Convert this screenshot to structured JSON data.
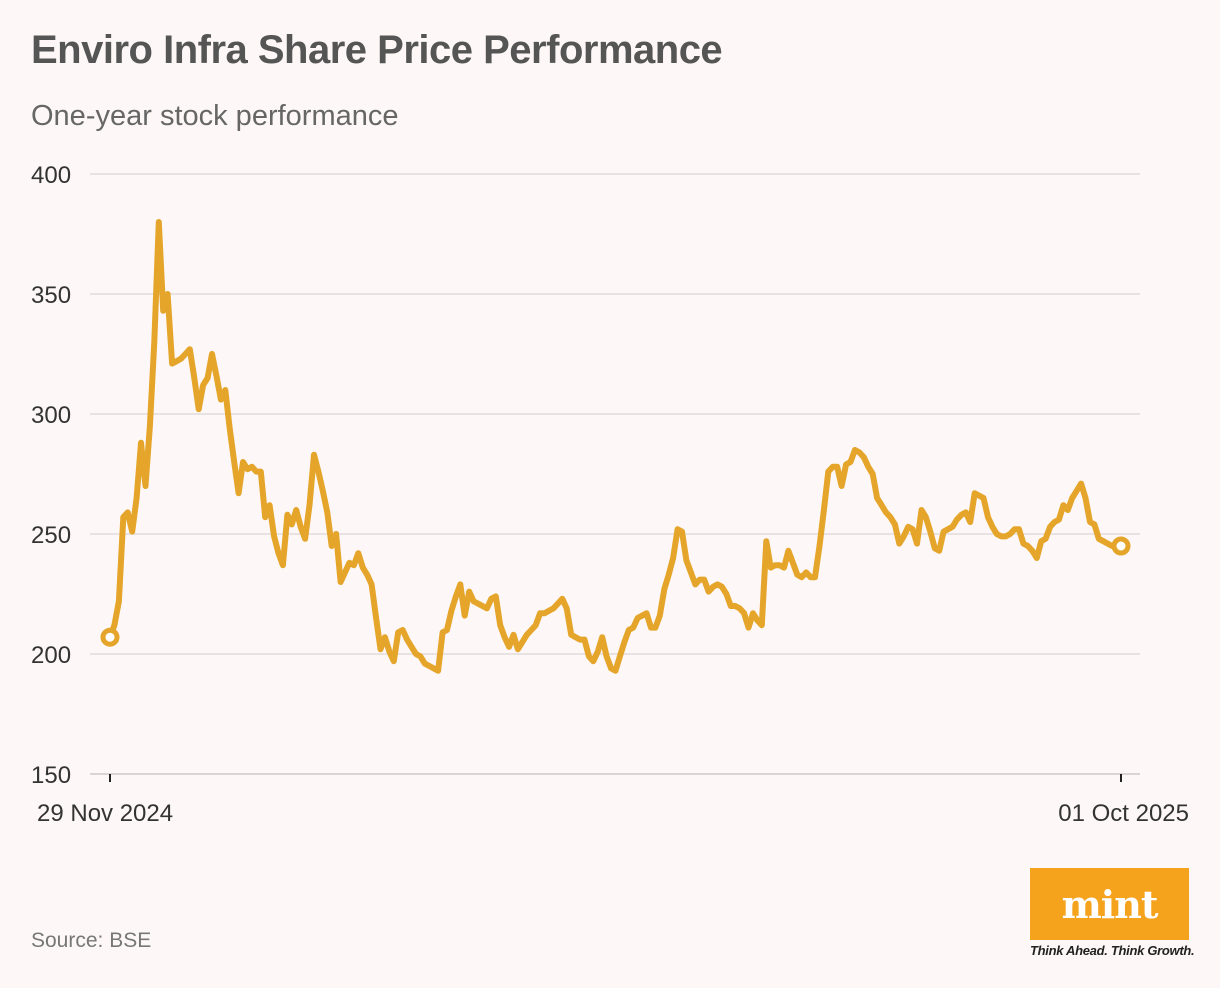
{
  "colors": {
    "background": "#FDF8F7",
    "line": "#E5A52B",
    "grid": "#E2DCDB",
    "logo": "#F5A21D"
  },
  "source": "Source: BSE",
  "logo": {
    "text": "mint",
    "tagline": "Think Ahead. Think Growth.",
    "icon": "mint-logo"
  },
  "chart_data": {
    "type": "line",
    "title": "Enviro Infra Share Price Performance",
    "subtitle": "One-year stock performance",
    "xlabel": "",
    "ylabel": "",
    "x_tick_labels": [
      "29 Nov 2024",
      "01 Oct 2025"
    ],
    "y_ticks": [
      150,
      200,
      250,
      300,
      350,
      400
    ],
    "ylim": [
      150,
      400
    ],
    "grid": true,
    "series": [
      {
        "values": [
          207,
          212,
          222,
          257,
          259,
          251,
          265,
          288,
          270,
          295,
          330,
          380,
          343,
          350,
          321,
          322,
          323,
          325,
          327,
          315,
          302,
          312,
          315,
          325,
          316,
          306,
          310,
          294,
          280,
          267,
          280,
          277,
          278,
          276,
          276,
          257,
          262,
          249,
          242,
          237,
          258,
          254,
          260,
          253,
          248,
          262,
          283,
          276,
          268,
          259,
          245,
          250,
          230,
          234,
          238,
          237,
          242,
          236,
          233,
          229,
          215,
          202,
          207,
          201,
          197,
          209,
          210,
          206,
          203,
          200,
          199,
          196,
          195,
          194,
          193,
          209,
          210,
          218,
          224,
          229,
          216,
          226,
          222,
          221,
          220,
          219,
          223,
          224,
          212,
          207,
          203,
          208,
          202,
          205,
          208,
          210,
          212,
          217,
          217,
          218,
          219,
          221,
          223,
          219,
          208,
          207,
          206,
          206,
          199,
          197,
          201,
          207,
          199,
          194,
          193,
          199,
          205,
          210,
          211,
          215,
          216,
          217,
          211,
          211,
          216,
          227,
          233,
          240,
          252,
          251,
          239,
          234,
          229,
          231,
          231,
          226,
          228,
          229,
          228,
          225,
          220,
          220,
          219,
          217,
          211,
          217,
          214,
          212,
          247,
          236,
          237,
          237,
          236,
          243,
          238,
          233,
          232,
          234,
          232,
          232,
          245,
          260,
          276,
          278,
          278,
          270,
          279,
          280,
          285,
          284,
          282,
          278,
          275,
          265,
          262,
          259,
          257,
          254,
          246,
          249,
          253,
          252,
          246,
          260,
          257,
          251,
          244,
          243,
          251,
          252,
          253,
          256,
          258,
          259,
          255,
          267,
          266,
          265,
          257,
          253,
          250,
          249,
          249,
          250,
          252,
          252,
          246,
          245,
          243,
          240,
          247,
          248,
          253,
          255,
          256,
          262,
          260,
          265,
          268,
          271,
          265,
          255,
          254,
          248,
          247,
          246,
          245,
          245,
          245
        ]
      }
    ]
  }
}
